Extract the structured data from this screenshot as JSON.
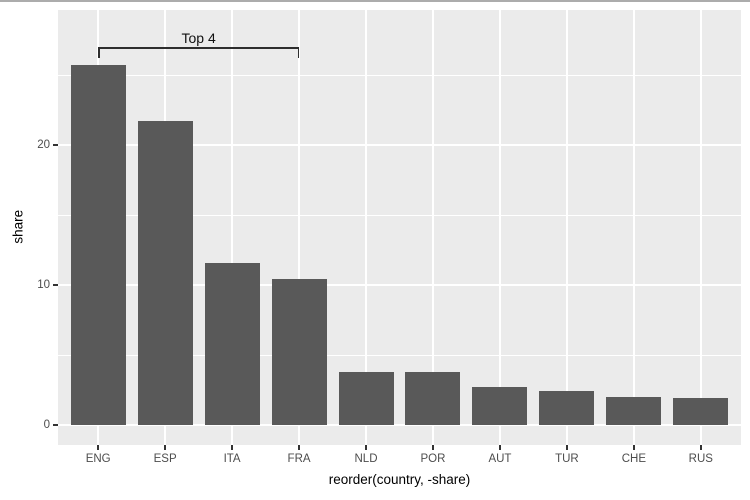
{
  "window": {
    "top_border_color": "#acacac",
    "background_color": "#ffffff"
  },
  "chart_data": {
    "type": "bar",
    "title": "",
    "categories": [
      "ENG",
      "ESP",
      "ITA",
      "FRA",
      "NLD",
      "POR",
      "AUT",
      "TUR",
      "CHE",
      "RUS"
    ],
    "values": [
      25.7,
      21.7,
      11.6,
      10.4,
      3.8,
      3.8,
      2.7,
      2.4,
      2.0,
      1.9
    ],
    "xlabel": "reorder(country, -share)",
    "ylabel": "share",
    "ylim": [
      -1.4,
      29.6
    ],
    "yticks": [
      0,
      10,
      20
    ],
    "yticks_minor": [
      5,
      15,
      25
    ],
    "grid": "major+minor horizontal, major vertical at category centers",
    "legend": "none",
    "theme": "ggplot2 theme_gray",
    "bar_color": "#595959",
    "panel_background": "#ebebeb",
    "gridline_color": "#ffffff",
    "tick_mark_color": "#333333",
    "tick_label_color": "#4d4d4d",
    "axis_title_color": "#000000",
    "annotation": {
      "label": "Top 4",
      "from_category": "ENG",
      "to_category": "FRA",
      "bracket_y_value": 27.0,
      "line_color": "#2e2e2e",
      "text_color": "#111111"
    }
  }
}
